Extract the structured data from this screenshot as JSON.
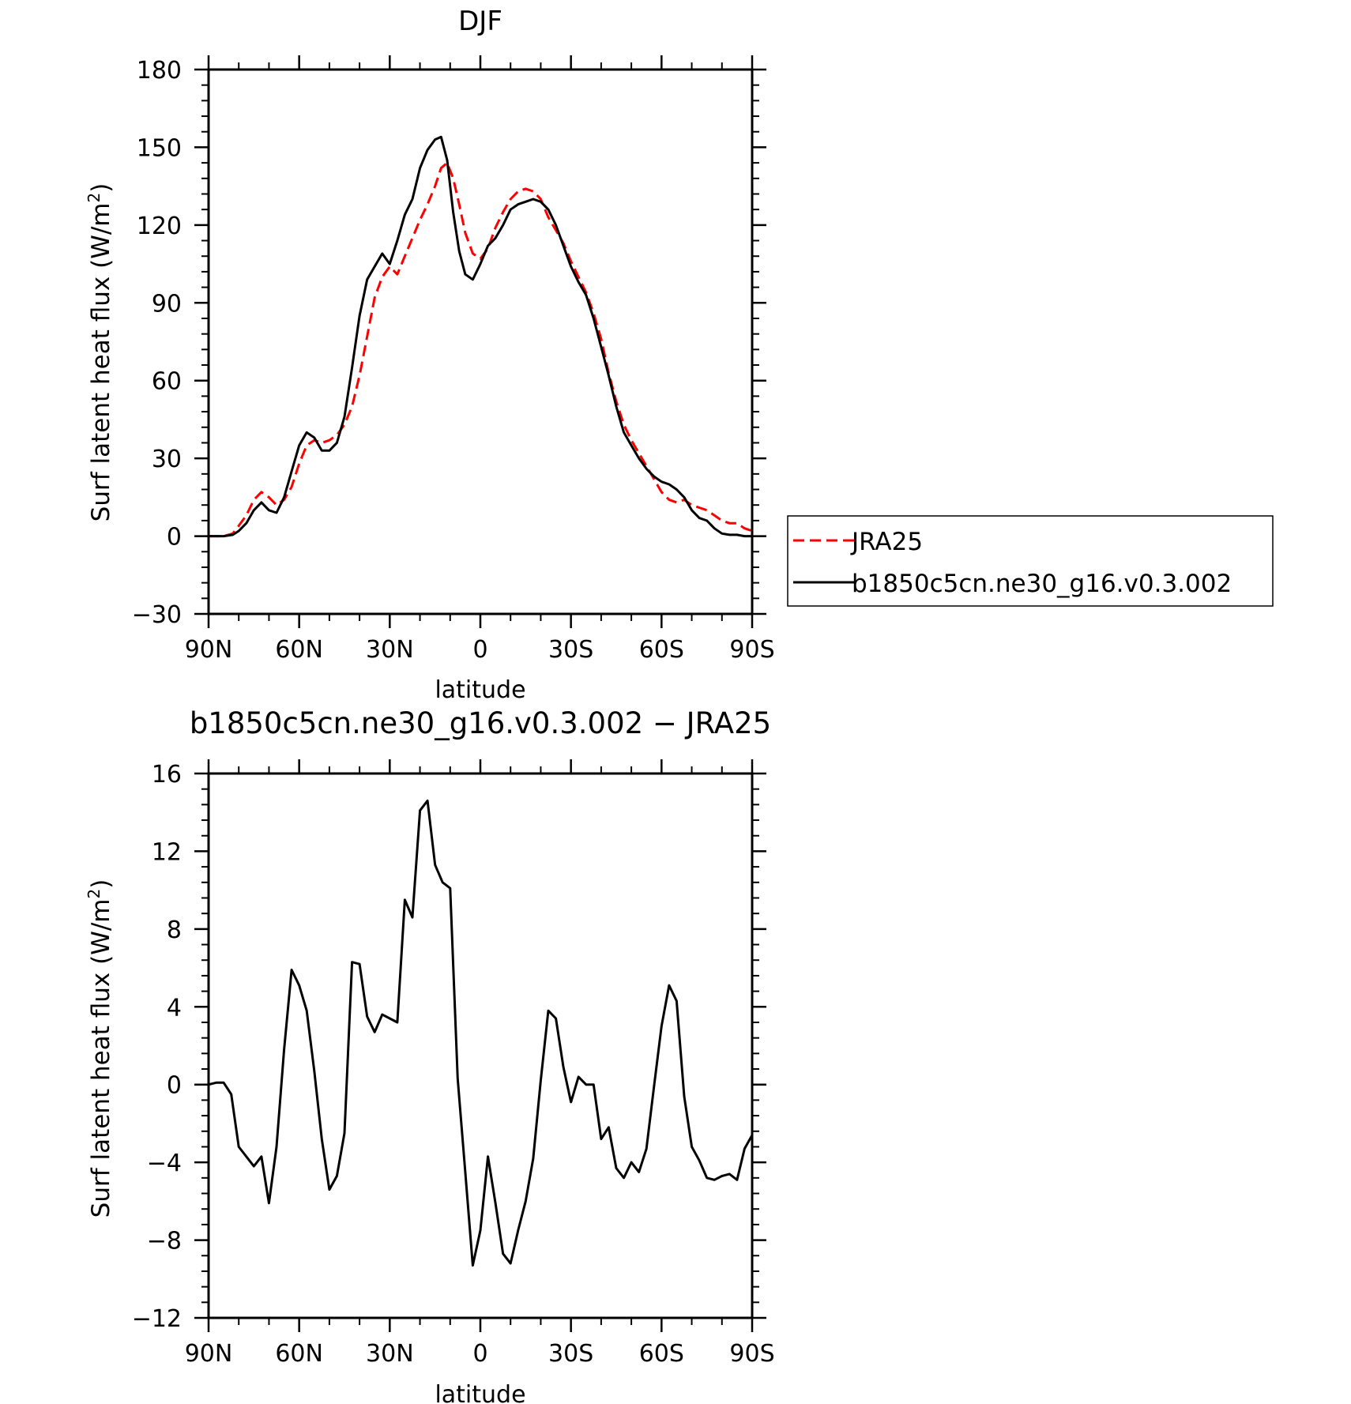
{
  "chart_data": [
    {
      "type": "line",
      "title": "DJF",
      "xlabel": "latitude",
      "ylabel": "Surf latent heat flux (W/m",
      "ylabel_sup": "2",
      "ylabel_close": ")",
      "xlim": [
        -90,
        90
      ],
      "ylim": [
        -30,
        180
      ],
      "xticks": [
        -90,
        -60,
        -30,
        0,
        30,
        60,
        90
      ],
      "xticklabels": [
        "90N",
        "60N",
        "30N",
        "0",
        "30S",
        "60S",
        "90S"
      ],
      "yticks": [
        -30,
        0,
        30,
        60,
        90,
        120,
        150,
        180
      ],
      "yticklabels": [
        "−30",
        "0",
        "30",
        "60",
        "90",
        "120",
        "150",
        "180"
      ],
      "grid": false,
      "legend": "right",
      "series": [
        {
          "name": "JRA25",
          "color": "#ff0000",
          "dash": "dashed",
          "x": [
            -90,
            -85,
            -82,
            -80,
            -77.5,
            -75,
            -72.5,
            -70,
            -67.5,
            -65,
            -62.5,
            -60,
            -57.5,
            -55,
            -52.5,
            -50,
            -47.5,
            -45,
            -42.5,
            -40,
            -37.5,
            -35,
            -32.5,
            -30,
            -27.5,
            -25,
            -22.5,
            -20,
            -17.5,
            -15,
            -13,
            -11,
            -9,
            -7,
            -5,
            -2.5,
            0,
            2.5,
            5,
            7.5,
            10,
            12.5,
            15,
            17.5,
            20,
            22.5,
            25,
            27.5,
            30,
            32.5,
            35,
            37.5,
            40,
            42.5,
            45,
            47.5,
            50,
            52.5,
            55,
            57.5,
            60,
            62.5,
            65,
            67.5,
            70,
            72.5,
            75,
            77.5,
            80,
            82.5,
            85,
            87.5,
            90
          ],
          "y": [
            0,
            0,
            1,
            4,
            8,
            14,
            17,
            15,
            12,
            14,
            19,
            28,
            35,
            37,
            36,
            37,
            39,
            43,
            50,
            62,
            77,
            92,
            100,
            104,
            101,
            108,
            115,
            122,
            128,
            135,
            142,
            144,
            138,
            128,
            117,
            109,
            107,
            111,
            119,
            125,
            130,
            133,
            134,
            133,
            130,
            123,
            118,
            113,
            106,
            100,
            94,
            86,
            76,
            63,
            52,
            43,
            37,
            32,
            27,
            22,
            17,
            14,
            13,
            14,
            12,
            11,
            10,
            8,
            6,
            5,
            5,
            3,
            2
          ]
        },
        {
          "name": "b1850c5cn.ne30_g16.v0.3.002",
          "color": "#000000",
          "dash": "solid",
          "x": [
            -90,
            -85,
            -82,
            -80,
            -77.5,
            -75,
            -72.5,
            -70,
            -67.5,
            -65,
            -62.5,
            -60,
            -57.5,
            -55,
            -52.5,
            -50,
            -47.5,
            -45,
            -42.5,
            -40,
            -37.5,
            -35,
            -32.5,
            -30,
            -27.5,
            -25,
            -22.5,
            -20,
            -17.5,
            -15,
            -13,
            -11,
            -9,
            -7,
            -5,
            -2.5,
            0,
            2.5,
            5,
            7.5,
            10,
            12.5,
            15,
            17.5,
            20,
            22.5,
            25,
            27.5,
            30,
            32.5,
            35,
            37.5,
            40,
            42.5,
            45,
            47.5,
            50,
            52.5,
            55,
            57.5,
            60,
            62.5,
            65,
            67.5,
            70,
            72.5,
            75,
            77.5,
            80,
            82.5,
            85,
            87.5,
            90
          ],
          "y": [
            0,
            0,
            0.5,
            2,
            5,
            10,
            13,
            10,
            9,
            15,
            25,
            35,
            40,
            38,
            33,
            33,
            36,
            46,
            65,
            85,
            99,
            104,
            109,
            105,
            114,
            124,
            130,
            142,
            149,
            153,
            154,
            145,
            125,
            110,
            101,
            99,
            105,
            112,
            115,
            120,
            126,
            128,
            129,
            130,
            129,
            126,
            120,
            112,
            104,
            98,
            93,
            84,
            73,
            62,
            50,
            40,
            35,
            30,
            26,
            23,
            21,
            20,
            18,
            15,
            10,
            7,
            6,
            3,
            1,
            0.5,
            0.5,
            0,
            0
          ]
        }
      ]
    },
    {
      "type": "line",
      "title": "b1850c5cn.ne30_g16.v0.3.002 − JRA25",
      "xlabel": "latitude",
      "ylabel": "Surf latent heat flux (W/m",
      "ylabel_sup": "2",
      "ylabel_close": ")",
      "xlim": [
        -90,
        90
      ],
      "ylim": [
        -12,
        16
      ],
      "xticks": [
        -90,
        -60,
        -30,
        0,
        30,
        60,
        90
      ],
      "xticklabels": [
        "90N",
        "60N",
        "30N",
        "0",
        "30S",
        "60S",
        "90S"
      ],
      "yticks": [
        -12,
        -8,
        -4,
        0,
        4,
        8,
        12,
        16
      ],
      "yticklabels": [
        "−12",
        "−8",
        "−4",
        "0",
        "4",
        "8",
        "12",
        "16"
      ],
      "grid": false,
      "series": [
        {
          "color": "#000000",
          "dash": "solid",
          "x": [
            -90,
            -87.5,
            -85,
            -82.5,
            -80,
            -77.5,
            -75,
            -72.5,
            -70,
            -67.5,
            -65,
            -62.5,
            -60,
            -57.5,
            -55,
            -52.5,
            -50,
            -47.5,
            -45,
            -42.5,
            -40,
            -37.5,
            -35,
            -32.5,
            -30,
            -27.5,
            -25,
            -22.5,
            -20,
            -17.5,
            -15,
            -12.5,
            -10,
            -7.5,
            -5,
            -2.5,
            0,
            2.5,
            5,
            7.5,
            10,
            12.5,
            15,
            17.5,
            20,
            22.5,
            25,
            27.5,
            30,
            32.5,
            35,
            37.5,
            40,
            42.5,
            45,
            47.5,
            50,
            52.5,
            55,
            57.5,
            60,
            62.5,
            65,
            67.5,
            70,
            72.5,
            75,
            77.5,
            80,
            82.5,
            85,
            87.5,
            90
          ],
          "y": [
            0,
            0.1,
            0.1,
            -0.5,
            -3.2,
            -3.7,
            -4.2,
            -3.7,
            -6.1,
            -3.2,
            1.8,
            5.9,
            5.1,
            3.8,
            0.7,
            -2.8,
            -5.4,
            -4.7,
            -2.5,
            6.3,
            6.2,
            3.5,
            2.7,
            3.6,
            3.4,
            3.2,
            9.5,
            8.6,
            14.1,
            14.6,
            11.3,
            10.4,
            10.1,
            0.3,
            -4.5,
            -9.3,
            -7.5,
            -3.7,
            -6.1,
            -8.7,
            -9.2,
            -7.5,
            -6.0,
            -3.8,
            0.2,
            3.8,
            3.4,
            0.9,
            -0.9,
            0.4,
            0.0,
            0.0,
            -2.8,
            -2.2,
            -4.3,
            -4.8,
            -4.0,
            -4.5,
            -3.3,
            -0.1,
            3.0,
            5.1,
            4.3,
            -0.6,
            -3.2,
            -3.9,
            -4.8,
            -4.9,
            -4.7,
            -4.6,
            -4.9,
            -3.3,
            -2.6
          ]
        }
      ]
    }
  ]
}
